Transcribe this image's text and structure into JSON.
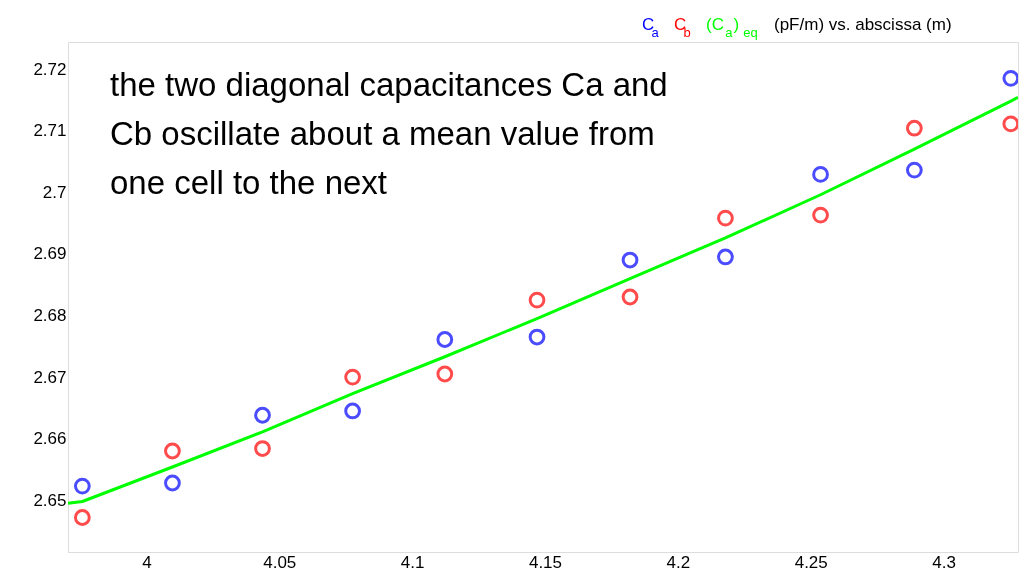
{
  "chart_data": {
    "type": "scatter",
    "title": "(pF/m)   vs. abscissa (m)",
    "x": [
      3.9759,
      4.0098,
      4.0437,
      4.0776,
      4.1123,
      4.147,
      4.182,
      4.2179,
      4.2537,
      4.289,
      4.3253
    ],
    "series": [
      {
        "name": "C$_{a}$",
        "color": "#0000ff",
        "values": [
          2.6523,
          2.6528,
          2.6638,
          2.6645,
          2.6761,
          2.6765,
          2.689,
          2.6895,
          2.7029,
          2.7036,
          2.7185
        ]
      },
      {
        "name": "C$_{b}$",
        "color": "#ff0000",
        "values": [
          2.6472,
          2.658,
          2.6584,
          2.67,
          2.6705,
          2.6825,
          2.683,
          2.6958,
          2.6963,
          2.7104,
          2.7111
        ]
      },
      {
        "name": "(C$_{a}$)$_{eq}$",
        "type": "line",
        "marker": "none",
        "color": "#00ff00",
        "x": [
          3.9705,
          3.9759,
          4.0098,
          4.0437,
          4.0776,
          4.1123,
          4.147,
          4.182,
          4.2179,
          4.2537,
          4.289,
          4.3253,
          4.328
        ],
        "values": [
          2.6495,
          2.6498,
          2.6554,
          2.6611,
          2.6673,
          2.6733,
          2.6795,
          2.686,
          2.6926,
          2.6996,
          2.707,
          2.7148,
          2.7154
        ]
      }
    ],
    "xlim": [
      3.9705,
      4.328
    ],
    "xticks": [
      4,
      4.05,
      4.1,
      4.15,
      4.2,
      4.25,
      4.3
    ],
    "ylim": [
      2.6416,
      2.7244
    ],
    "yticks": [
      2.65,
      2.66,
      2.67,
      2.68,
      2.69,
      2.7,
      2.71,
      2.72
    ],
    "marker": "circle",
    "grid": false,
    "legend": "top right",
    "annotations": [
      "the two diagonal capacitances Ca and",
      "Cb oscillate about a mean value from",
      "one cell to the next"
    ]
  }
}
